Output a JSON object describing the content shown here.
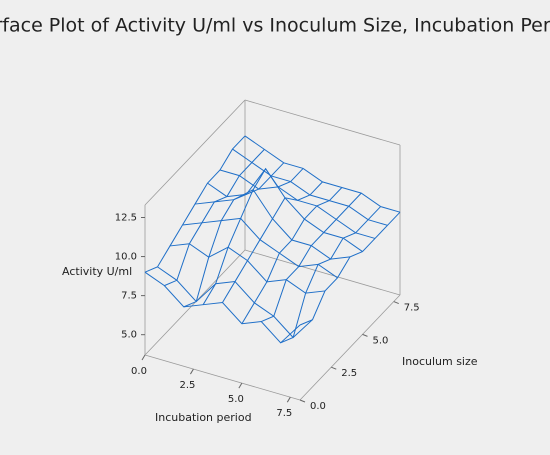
{
  "chart_data": {
    "type": "surface",
    "title": "Surface Plot of Activity U/ml vs Inoculum Size, Incubation Period",
    "xlabel": "Incubation period",
    "ylabel": "Inoculum size",
    "zlabel": "Activity U/ml",
    "x": [
      0,
      1,
      2,
      3,
      4,
      5,
      6,
      7,
      8
    ],
    "y": [
      0,
      1,
      2,
      3,
      4,
      5,
      6,
      7,
      8
    ],
    "z": [
      [
        9.0,
        8.5,
        7.5,
        8.0,
        8.5,
        7.5,
        8.0,
        7.0,
        8.5
      ],
      [
        8.5,
        8.0,
        7.0,
        8.5,
        9.0,
        8.0,
        7.5,
        6.5,
        8.0
      ],
      [
        9.0,
        9.5,
        9.0,
        10.0,
        9.5,
        8.5,
        9.0,
        8.5,
        9.0
      ],
      [
        9.5,
        10.0,
        10.5,
        11.0,
        10.0,
        9.5,
        9.0,
        9.5,
        9.0
      ],
      [
        10.0,
        10.5,
        11.0,
        12.0,
        10.5,
        9.5,
        9.5,
        9.0,
        9.5
      ],
      [
        10.5,
        10.0,
        10.5,
        12.5,
        11.0,
        10.0,
        9.5,
        9.5,
        9.0
      ],
      [
        10.5,
        10.5,
        10.0,
        10.5,
        10.0,
        10.0,
        9.5,
        9.0,
        9.0
      ],
      [
        11.0,
        10.5,
        10.0,
        10.0,
        9.5,
        9.5,
        9.5,
        9.0,
        9.0
      ],
      [
        11.0,
        10.5,
        10.0,
        10.0,
        9.5,
        9.5,
        9.5,
        9.0,
        9.0
      ]
    ],
    "color": "#1f6fc8",
    "xlim": [
      0,
      8
    ],
    "ylim": [
      0,
      8
    ],
    "zlim": [
      3.7,
      13.3
    ],
    "xticks": [
      {
        "value": 0,
        "label": "0.0"
      },
      {
        "value": 2.5,
        "label": "2.5"
      },
      {
        "value": 5,
        "label": "5.0"
      },
      {
        "value": 7.5,
        "label": "7.5"
      }
    ],
    "yticks": [
      {
        "value": 0,
        "label": "0.0"
      },
      {
        "value": 2.5,
        "label": "2.5"
      },
      {
        "value": 5,
        "label": "5.0"
      },
      {
        "value": 7.5,
        "label": "7.5"
      }
    ],
    "zticks": [
      {
        "value": 5,
        "label": "5.0"
      },
      {
        "value": 7.5,
        "label": "7.5"
      },
      {
        "value": 10,
        "label": "10.0"
      },
      {
        "value": 12.5,
        "label": "12.5"
      }
    ]
  }
}
